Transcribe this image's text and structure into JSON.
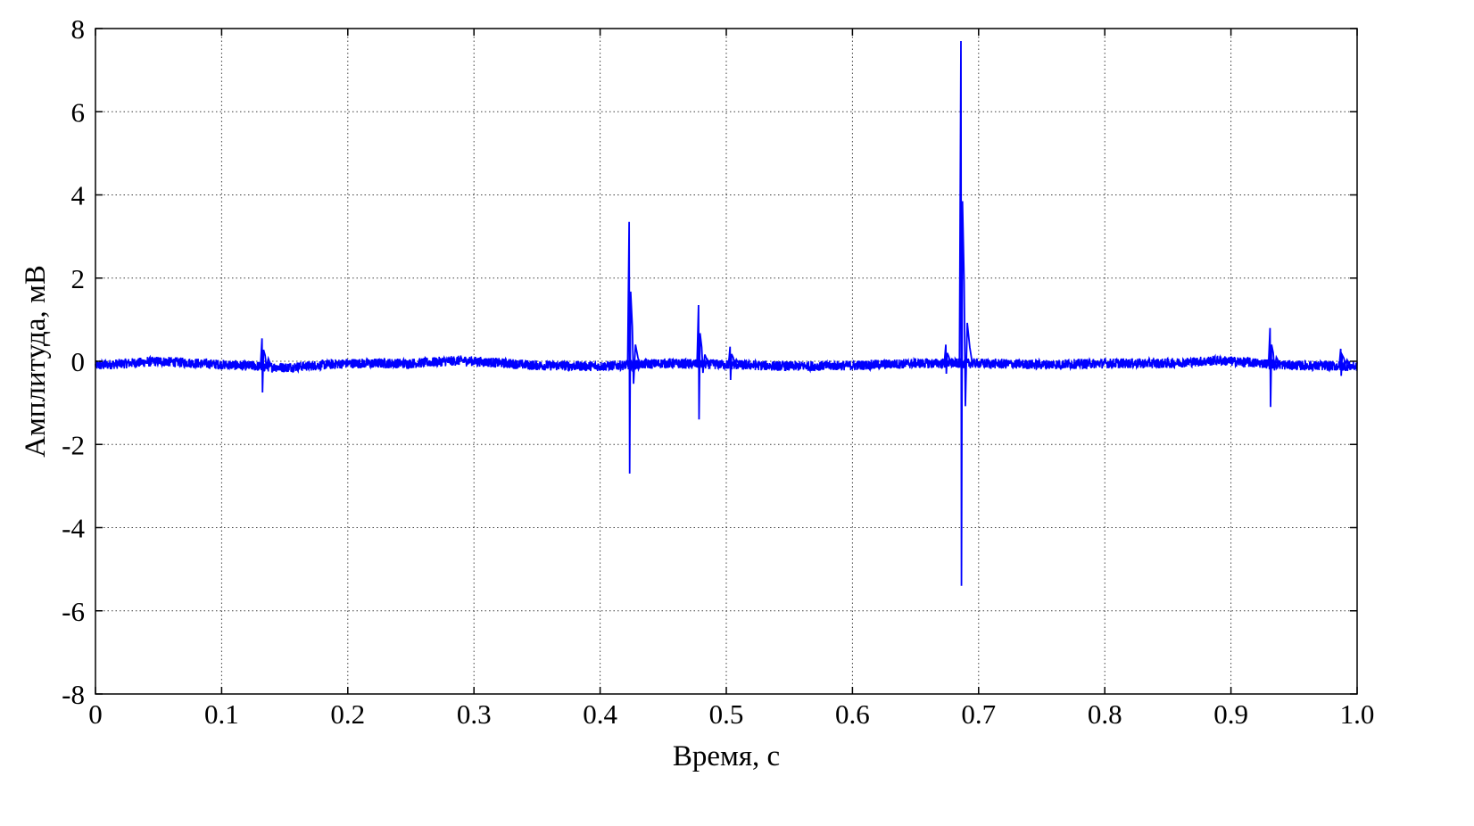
{
  "chart_data": {
    "type": "line",
    "title": "",
    "xlabel": "Время, с",
    "ylabel": "Амплитуда, мВ",
    "xlim": [
      0,
      1.0
    ],
    "ylim": [
      -8,
      8
    ],
    "grid": true,
    "x_ticks": [
      "0",
      "0.1",
      "0.2",
      "0.3",
      "0.4",
      "0.5",
      "0.6",
      "0.7",
      "0.8",
      "0.9",
      "1.0"
    ],
    "x_tick_values": [
      0,
      0.1,
      0.2,
      0.3,
      0.4,
      0.5,
      0.6,
      0.7,
      0.8,
      0.9,
      1.0
    ],
    "y_ticks": [
      "-8",
      "-6",
      "-4",
      "-2",
      "0",
      "2",
      "4",
      "6",
      "8"
    ],
    "y_tick_values": [
      -8,
      -6,
      -4,
      -2,
      0,
      2,
      4,
      6,
      8
    ],
    "line_color": "#0000ff",
    "baseline": {
      "mean": -0.08,
      "noise_amplitude": 0.12,
      "x": [
        0,
        0.05,
        0.1,
        0.15,
        0.2,
        0.25,
        0.29,
        0.35,
        0.4,
        0.45,
        0.5,
        0.55,
        0.6,
        0.65,
        0.7,
        0.75,
        0.8,
        0.85,
        0.89,
        0.95,
        1.0
      ],
      "y": [
        -0.1,
        0.0,
        -0.08,
        -0.15,
        -0.05,
        -0.05,
        0.02,
        -0.1,
        -0.12,
        -0.05,
        -0.08,
        -0.12,
        -0.1,
        -0.05,
        -0.05,
        -0.08,
        -0.05,
        -0.05,
        0.02,
        -0.1,
        -0.12
      ]
    },
    "spikes": [
      {
        "t": 0.132,
        "max": 0.55,
        "min": -0.75
      },
      {
        "t": 0.423,
        "max": 3.35,
        "min": -2.7
      },
      {
        "t": 0.478,
        "max": 1.35,
        "min": -1.4
      },
      {
        "t": 0.503,
        "max": 0.35,
        "min": -0.45
      },
      {
        "t": 0.674,
        "max": 0.4,
        "min": -0.3
      },
      {
        "t": 0.686,
        "max": 7.7,
        "min": -5.4
      },
      {
        "t": 0.931,
        "max": 0.8,
        "min": -1.1
      },
      {
        "t": 0.987,
        "max": 0.3,
        "min": -0.35
      }
    ]
  }
}
